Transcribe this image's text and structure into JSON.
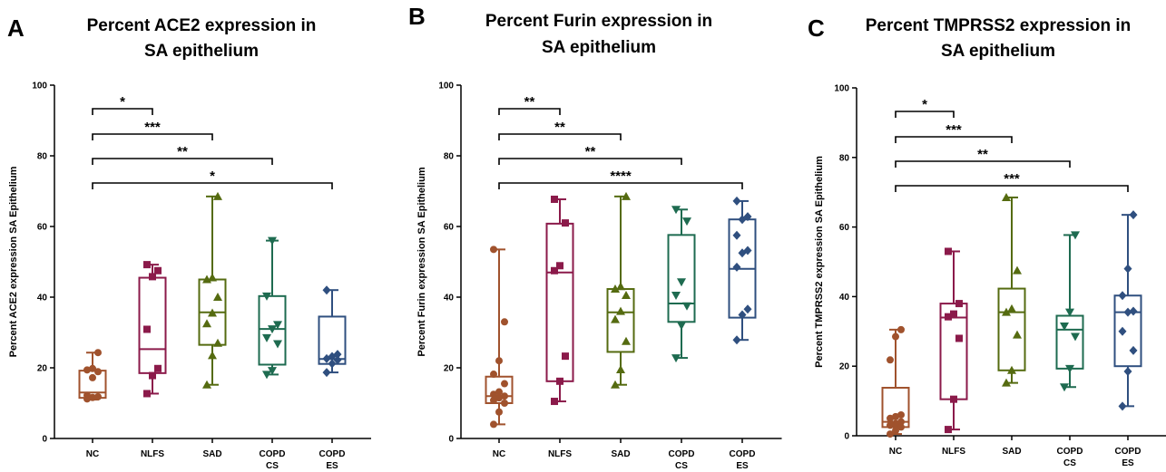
{
  "panels": [
    {
      "letter": "A",
      "title_lines": [
        "Percent ACE2 expression in",
        "SA epithelium"
      ],
      "ylabel": "Percent ACE2 expression SA Epithelium",
      "categories": [
        [
          "NC"
        ],
        [
          "NLFS"
        ],
        [
          "SAD"
        ],
        [
          "COPD",
          "CS"
        ],
        [
          "COPD",
          "ES"
        ]
      ]
    },
    {
      "letter": "B",
      "title_lines": [
        "Percent Furin expression in",
        "SA epithelium"
      ],
      "ylabel": "Percent Furin expression SA Epithelium",
      "categories": [
        [
          "NC"
        ],
        [
          "NLFS"
        ],
        [
          "SAD"
        ],
        [
          "COPD",
          "CS"
        ],
        [
          "COPD",
          "ES"
        ]
      ]
    },
    {
      "letter": "C",
      "title_lines": [
        "Percent TMPRSS2 expression in",
        "SA epithelium"
      ],
      "ylabel": "Percent TMPRSS2 expression SA Epithelium",
      "categories": [
        [
          "NC"
        ],
        [
          "NLFS"
        ],
        [
          "SAD"
        ],
        [
          "COPD",
          "CS"
        ],
        [
          "COPD",
          "ES"
        ]
      ]
    }
  ],
  "chart_data": [
    {
      "type": "box",
      "title": "Percent ACE2 expression in SA epithelium",
      "ylabel": "Percent ACE2 expression SA Epithelium",
      "ylim": [
        0,
        100
      ],
      "yticks": [
        0,
        20,
        40,
        60,
        80,
        100
      ],
      "categories": [
        "NC",
        "NLFS",
        "SAD",
        "COPD CS",
        "COPD ES"
      ],
      "groups": [
        {
          "name": "NC",
          "color": "#A0522D",
          "marker": "circle",
          "whisker_min": 11,
          "q1": 11.5,
          "median": 13,
          "q3": 19.2,
          "whisker_max": 24.3,
          "points": [
            11.2,
            11.6,
            11.8,
            12.2,
            17.2,
            18.9,
            19.4,
            19.8,
            24.3
          ]
        },
        {
          "name": "NLFS",
          "color": "#8B1A4A",
          "marker": "square",
          "whisker_min": 12.7,
          "q1": 18.5,
          "median": 25.3,
          "q3": 45.5,
          "whisker_max": 49.2,
          "points": [
            12.7,
            17.8,
            19.8,
            30.9,
            45.8,
            47.5,
            49.2
          ]
        },
        {
          "name": "SAD",
          "color": "#556B10",
          "marker": "triangle-up",
          "whisker_min": 15.2,
          "q1": 26.5,
          "median": 35.7,
          "q3": 45,
          "whisker_max": 68.5,
          "points": [
            15.2,
            23.5,
            27,
            32.5,
            35.5,
            40,
            45,
            45.5,
            68.5
          ]
        },
        {
          "name": "COPD CS",
          "color": "#1E6B50",
          "marker": "triangle-down",
          "whisker_min": 18.1,
          "q1": 20.9,
          "median": 31,
          "q3": 40.3,
          "whisker_max": 56,
          "points": [
            18.1,
            19.2,
            26.8,
            28.5,
            31,
            32.2,
            40.3,
            56
          ]
        },
        {
          "name": "COPD ES",
          "color": "#2F4F7F",
          "marker": "diamond",
          "whisker_min": 18.7,
          "q1": 21.1,
          "median": 22.5,
          "q3": 34.5,
          "whisker_max": 42,
          "points": [
            18.7,
            21.2,
            22.2,
            22.6,
            23.2,
            23.8,
            42
          ]
        }
      ],
      "significance": [
        {
          "from": "NC",
          "to": "NLFS",
          "label": "*"
        },
        {
          "from": "NC",
          "to": "SAD",
          "label": "***"
        },
        {
          "from": "NC",
          "to": "COPD CS",
          "label": "**"
        },
        {
          "from": "NC",
          "to": "COPD ES",
          "label": "*"
        }
      ]
    },
    {
      "type": "box",
      "title": "Percent Furin expression in SA epithelium",
      "ylabel": "Percent Furin expression SA Epithelium",
      "ylim": [
        0,
        100
      ],
      "yticks": [
        0,
        20,
        40,
        60,
        80,
        100
      ],
      "categories": [
        "NC",
        "NLFS",
        "SAD",
        "COPD CS",
        "COPD ES"
      ],
      "groups": [
        {
          "name": "NC",
          "color": "#A0522D",
          "marker": "circle",
          "whisker_min": 4,
          "q1": 10,
          "median": 12,
          "q3": 17.5,
          "whisker_max": 53.5,
          "points": [
            4,
            7.5,
            10,
            10.8,
            11.5,
            12,
            12.5,
            13.2,
            15.5,
            18.2,
            22,
            33,
            53.5
          ]
        },
        {
          "name": "NLFS",
          "color": "#8B1A4A",
          "marker": "square",
          "whisker_min": 10.5,
          "q1": 16.2,
          "median": 47,
          "q3": 60.8,
          "whisker_max": 67.7,
          "points": [
            10.5,
            16.2,
            23.3,
            47.5,
            48.9,
            61,
            67.7
          ]
        },
        {
          "name": "SAD",
          "color": "#556B10",
          "marker": "triangle-up",
          "whisker_min": 15.2,
          "q1": 24.5,
          "median": 35.7,
          "q3": 42.3,
          "whisker_max": 68.5,
          "points": [
            15.2,
            19.5,
            27.5,
            33.7,
            36,
            40.5,
            42.3,
            43,
            68.5
          ]
        },
        {
          "name": "COPD CS",
          "color": "#1E6B50",
          "marker": "triangle-down",
          "whisker_min": 22.8,
          "q1": 33,
          "median": 38.2,
          "q3": 57.6,
          "whisker_max": 64.8,
          "points": [
            22.8,
            32,
            37.5,
            40.5,
            44.3,
            61.5,
            64.8
          ]
        },
        {
          "name": "COPD ES",
          "color": "#2F4F7F",
          "marker": "diamond",
          "whisker_min": 27.9,
          "q1": 34.2,
          "median": 48,
          "q3": 62,
          "whisker_max": 67.2,
          "points": [
            27.9,
            35,
            36.6,
            48.5,
            52.5,
            53.2,
            57.5,
            62,
            62.8,
            67.2
          ]
        }
      ],
      "significance": [
        {
          "from": "NC",
          "to": "NLFS",
          "label": "**"
        },
        {
          "from": "NC",
          "to": "SAD",
          "label": "**"
        },
        {
          "from": "NC",
          "to": "COPD CS",
          "label": "**"
        },
        {
          "from": "NC",
          "to": "COPD ES",
          "label": "****"
        }
      ]
    },
    {
      "type": "box",
      "title": "Percent TMPRSS2 expression in SA epithelium",
      "ylabel": "Percent TMPRSS2 expression SA Epithelium",
      "ylim": [
        0,
        100
      ],
      "yticks": [
        0,
        20,
        40,
        60,
        80,
        100
      ],
      "categories": [
        "NC",
        "NLFS",
        "SAD",
        "COPD CS",
        "COPD ES"
      ],
      "groups": [
        {
          "name": "NC",
          "color": "#A0522D",
          "marker": "circle",
          "whisker_min": 0.5,
          "q1": 2.5,
          "median": 4,
          "q3": 13.8,
          "whisker_max": 30.5,
          "points": [
            0.5,
            1.5,
            2.5,
            3,
            3.5,
            4,
            5,
            5.5,
            6,
            21.8,
            28.5,
            30.5
          ]
        },
        {
          "name": "NLFS",
          "color": "#8B1A4A",
          "marker": "square",
          "whisker_min": 1.8,
          "q1": 10.5,
          "median": 34,
          "q3": 38,
          "whisker_max": 53,
          "points": [
            1.8,
            10.5,
            28,
            34.2,
            35,
            38,
            53
          ]
        },
        {
          "name": "SAD",
          "color": "#556B10",
          "marker": "triangle-up",
          "whisker_min": 15.2,
          "q1": 18.8,
          "median": 35.5,
          "q3": 42.3,
          "whisker_max": 68.5,
          "points": [
            15.2,
            18.8,
            29,
            35.5,
            36.5,
            47.5,
            68.5
          ]
        },
        {
          "name": "COPD CS",
          "color": "#1E6B50",
          "marker": "triangle-down",
          "whisker_min": 14,
          "q1": 19.3,
          "median": 30.5,
          "q3": 34.5,
          "whisker_max": 57.7,
          "points": [
            14,
            19.3,
            28.5,
            31.5,
            35.5,
            57.7
          ]
        },
        {
          "name": "COPD ES",
          "color": "#2F4F7F",
          "marker": "diamond",
          "whisker_min": 8.5,
          "q1": 20,
          "median": 35.5,
          "q3": 40.3,
          "whisker_max": 63.5,
          "points": [
            8.5,
            18.5,
            24.5,
            30,
            35.5,
            35.8,
            40.3,
            48,
            63.5
          ]
        }
      ],
      "significance": [
        {
          "from": "NC",
          "to": "NLFS",
          "label": "*"
        },
        {
          "from": "NC",
          "to": "SAD",
          "label": "***"
        },
        {
          "from": "NC",
          "to": "COPD CS",
          "label": "**"
        },
        {
          "from": "NC",
          "to": "COPD ES",
          "label": "***"
        }
      ]
    }
  ]
}
